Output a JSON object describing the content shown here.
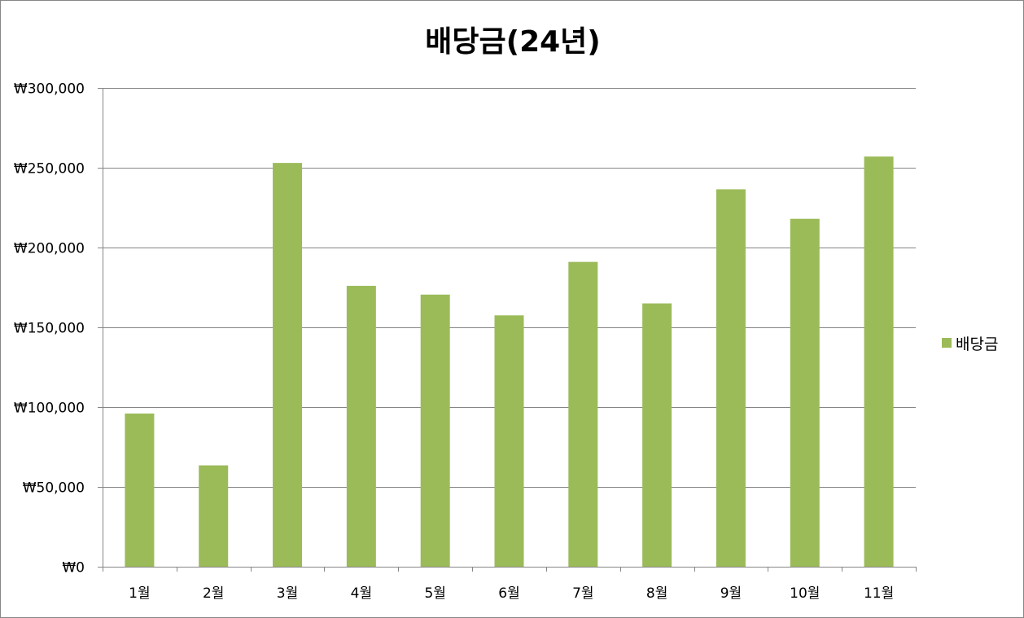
{
  "chart_data": {
    "type": "bar",
    "title": "배당금(24년)",
    "categories": [
      "1월",
      "2월",
      "3월",
      "4월",
      "5월",
      "6월",
      "7월",
      "8월",
      "9월",
      "10월",
      "11월"
    ],
    "series": [
      {
        "name": "배당금",
        "color": "#9bbb59",
        "values": [
          96000,
          63500,
          253000,
          176000,
          170500,
          157500,
          191000,
          165000,
          236500,
          218000,
          257000
        ]
      }
    ],
    "ylim": [
      0,
      300000
    ],
    "yticks": [
      0,
      50000,
      100000,
      150000,
      200000,
      250000,
      300000
    ],
    "ytick_labels": [
      "₩0",
      "₩50,000",
      "₩100,000",
      "₩150,000",
      "₩200,000",
      "₩250,000",
      "₩300,000"
    ],
    "grid": true,
    "legend_position": "right"
  }
}
